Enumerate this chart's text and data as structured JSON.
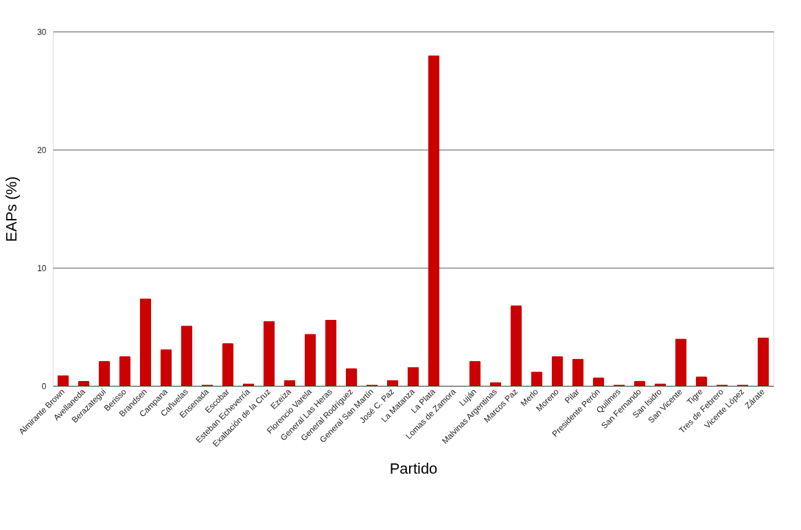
{
  "chart_data": {
    "type": "bar",
    "xlabel": "Partido",
    "ylabel": "EAPs (%)",
    "categories": [
      "Almirante Brown",
      "Avellaneda",
      "Berazategui",
      "Berisso",
      "Brandsen",
      "Campana",
      "Cañuelas",
      "Ensenada",
      "Escobar",
      "Esteban Echeverría",
      "Exaltación de la Cruz",
      "Ezeiza",
      "Florencio Varela",
      "General Las Heras",
      "General Rodríguez",
      "General San Martín",
      "José C. Paz",
      "La Matanza",
      "La Plata",
      "Lomas de Zamora",
      "Luján",
      "Malvinas Argentinas",
      "Marcos Paz",
      "Merlo",
      "Moreno",
      "Pilar",
      "Presidente Perón",
      "Quilmes",
      "San Fernando",
      "San Isidro",
      "San Vicente",
      "Tigre",
      "Tres de Febrero",
      "Vicente López",
      "Zárate"
    ],
    "values": [
      0.9,
      0.4,
      2.1,
      2.5,
      7.4,
      3.1,
      5.1,
      0.1,
      3.6,
      0.2,
      5.5,
      0.5,
      4.4,
      5.6,
      1.5,
      0.1,
      0.5,
      1.6,
      28,
      0,
      2.1,
      0.3,
      6.8,
      1.2,
      2.5,
      2.3,
      0.7,
      0.1,
      0.4,
      0.2,
      4.0,
      0.8,
      0.1,
      0.1,
      4.1
    ],
    "color": "#cc0000",
    "ylim": [
      0,
      30
    ],
    "yticks": [
      0,
      10,
      20,
      30
    ],
    "grid": "y"
  }
}
